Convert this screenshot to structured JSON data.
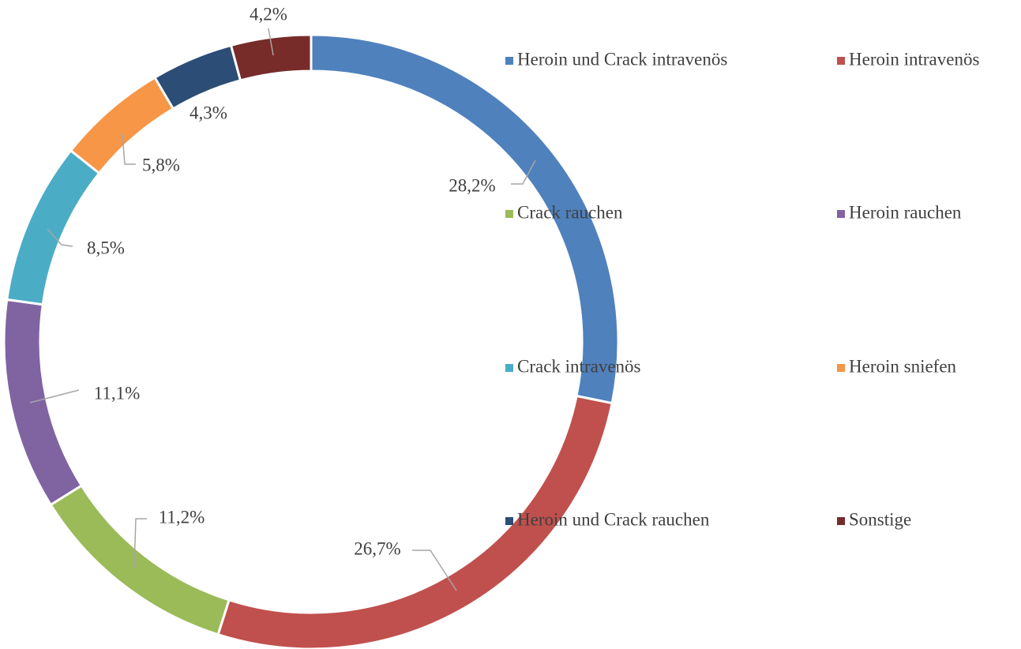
{
  "chart_data": {
    "type": "donut",
    "categories": [
      "Heroin und Crack intravenös",
      "Heroin intravenös",
      "Crack rauchen",
      "Heroin rauchen",
      "Crack intravenös",
      "Heroin sniefen",
      "Heroin und Crack rauchen",
      "Sonstige"
    ],
    "values": [
      28.2,
      26.7,
      11.2,
      11.1,
      8.5,
      5.8,
      4.3,
      4.2
    ],
    "value_labels": [
      "28,2%",
      "26,7%",
      "11,2%",
      "11,1%",
      "8,5%",
      "5,8%",
      "4,3%",
      "4,2%"
    ],
    "colors": [
      "#4f81bd",
      "#c0504d",
      "#9bbb59",
      "#8064a2",
      "#4bacc6",
      "#f79646",
      "#2c4d75",
      "#772c2a"
    ],
    "legend": "right"
  }
}
